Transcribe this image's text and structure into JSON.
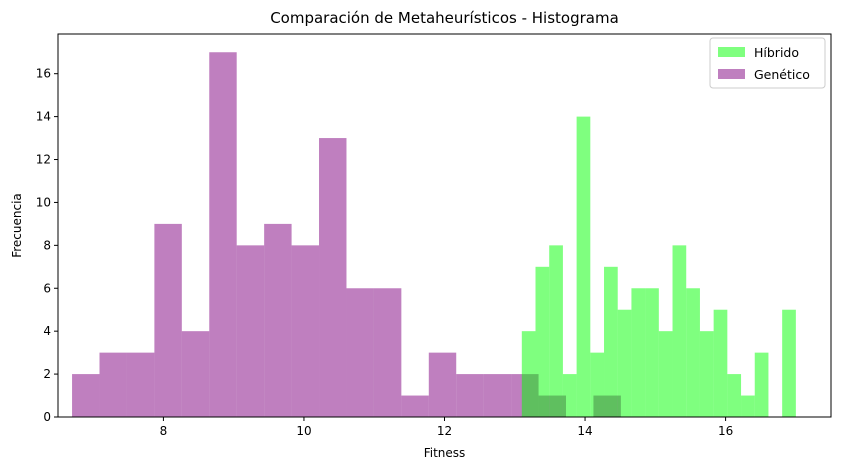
{
  "chart_data": {
    "type": "bar",
    "title": "Comparación de Metaheurísticos - Histograma",
    "xlabel": "Fitness",
    "ylabel": "Frecuencia",
    "xlim": [
      6.5,
      17.5
    ],
    "ylim": [
      0,
      17.85
    ],
    "xticks": [
      8,
      10,
      12,
      14,
      16
    ],
    "yticks": [
      0,
      2,
      4,
      6,
      8,
      10,
      12,
      14,
      16
    ],
    "grid": false,
    "legend_position": "top-right",
    "series": [
      {
        "name": "Híbrido",
        "color": "#00ff00",
        "opacity": 0.5,
        "bin_start": 13.1,
        "bin_width": 0.195,
        "values": [
          4,
          7,
          8,
          2,
          14,
          3,
          7,
          5,
          6,
          6,
          4,
          8,
          6,
          4,
          5,
          2,
          1,
          3,
          0,
          5
        ]
      },
      {
        "name": "Genético",
        "color": "#800080",
        "opacity": 0.5,
        "bin_start": 6.7,
        "bin_width": 0.3905,
        "values": [
          2,
          3,
          3,
          9,
          4,
          17,
          8,
          9,
          8,
          13,
          6,
          6,
          1,
          3,
          2,
          2,
          2,
          1,
          0,
          1
        ]
      }
    ]
  }
}
